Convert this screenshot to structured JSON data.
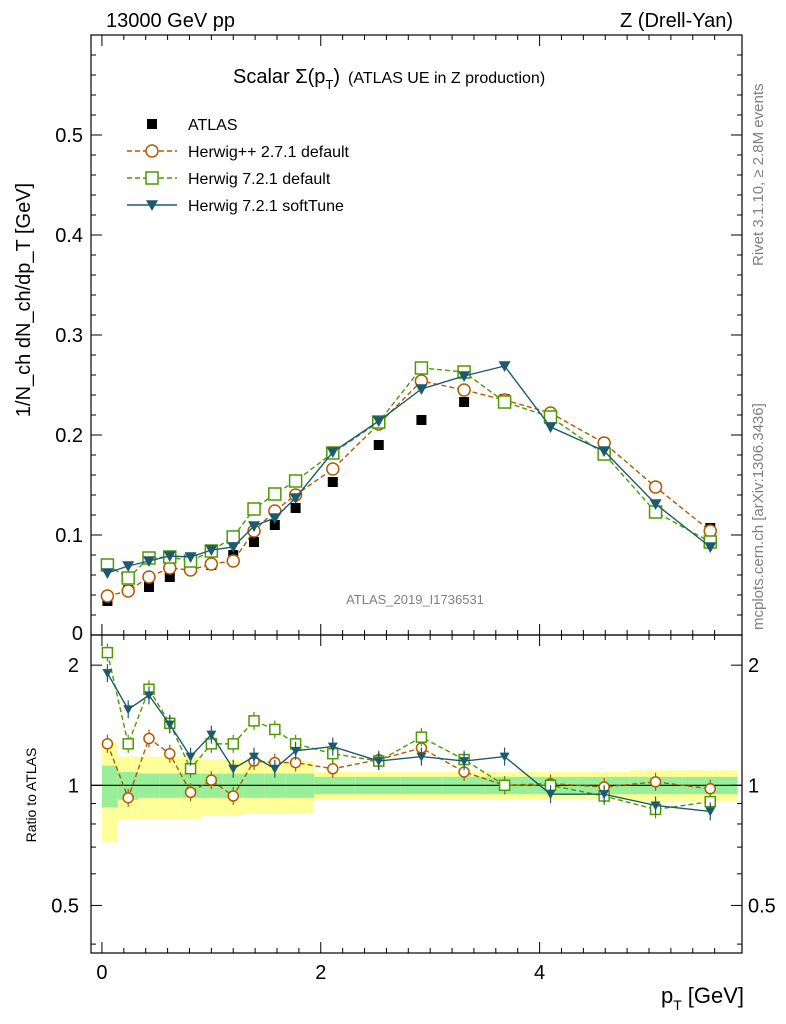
{
  "header": {
    "left": "13000 GeV pp",
    "right": "Z (Drell-Yan)"
  },
  "side": {
    "rivet": "Rivet 3.1.10, ≥ 2.8M events",
    "mcplots": "mcplots.cern.ch [arXiv:1306.3436]"
  },
  "chart_data": {
    "type": "scatter",
    "title": "Scalar Σ(p_T) (ATLAS UE in Z production)",
    "title_parts": {
      "main": "Scalar Σ(p",
      "sub": "T",
      "close": ")",
      "rest": "(ATLAS UE in Z production)"
    },
    "analysis_id": "ATLAS_2019_I1736531",
    "xlabel": "p_T [GeV]",
    "xlabel_parts": {
      "p": "p",
      "sub": "T",
      "unit": "[GeV]"
    },
    "ylabel": "1/N_ch dN_ch/dp_T [GeV]",
    "ratio_ylabel": "Ratio to ATLAS",
    "xlim": [
      -0.1,
      5.85
    ],
    "ylim": [
      0,
      0.6
    ],
    "ratio_ylim": [
      0.38,
      2.38
    ],
    "xticks": [
      0,
      2,
      4
    ],
    "xtick_labels": [
      "0",
      "2",
      "4"
    ],
    "yticks": [
      0.1,
      0.2,
      0.3,
      0.4,
      0.5
    ],
    "ytick_labels": [
      "0.1",
      "0.2",
      "0.3",
      "0.4",
      "0.5"
    ],
    "ymin_label": "0",
    "ratio_yticks": [
      0.5,
      1,
      2
    ],
    "ratio_ytick_labels": [
      "0.5",
      "1",
      "2"
    ],
    "x": [
      0.05,
      0.24,
      0.43,
      0.62,
      0.81,
      1.0,
      1.2,
      1.39,
      1.58,
      1.77,
      2.11,
      2.53,
      2.92,
      3.31,
      3.68,
      4.1,
      4.59,
      5.06,
      5.56
    ],
    "series": [
      {
        "name": "ATLAS",
        "style": "data",
        "color": "#000000",
        "values": [
          0.034,
          0.045,
          0.048,
          0.058,
          0.067,
          0.07,
          0.08,
          0.093,
          0.11,
          0.127,
          0.153,
          0.19,
          0.215,
          0.233,
          0.236,
          0.22,
          0.192,
          0.148,
          0.107
        ],
        "band_stat": [
          0.12,
          0.08,
          0.07,
          0.07,
          0.07,
          0.07,
          0.07,
          0.07,
          0.07,
          0.07,
          0.05,
          0.05,
          0.05,
          0.05,
          0.05,
          0.05,
          0.05,
          0.05,
          0.05
        ],
        "band_total": [
          0.28,
          0.18,
          0.18,
          0.18,
          0.18,
          0.16,
          0.16,
          0.15,
          0.15,
          0.15,
          0.08,
          0.08,
          0.08,
          0.08,
          0.08,
          0.08,
          0.08,
          0.09,
          0.09
        ]
      },
      {
        "name": "Herwig++ 2.7.1 default",
        "style": "dashed-circle",
        "color": "#b35900",
        "values": [
          0.039,
          0.044,
          0.058,
          0.067,
          0.065,
          0.071,
          0.074,
          0.104,
          0.124,
          0.14,
          0.166,
          0.211,
          0.254,
          0.245,
          0.235,
          0.222,
          0.192,
          0.148,
          0.104
        ],
        "ratio": [
          1.27,
          0.93,
          1.31,
          1.2,
          0.96,
          1.03,
          0.94,
          1.15,
          1.14,
          1.14,
          1.1,
          1.16,
          1.24,
          1.08,
          1.0,
          1.01,
          0.99,
          1.02,
          0.98
        ]
      },
      {
        "name": "Herwig 7.2.1 default",
        "style": "dashed-square",
        "color": "#4c9a00",
        "values": [
          0.07,
          0.057,
          0.077,
          0.078,
          0.074,
          0.084,
          0.098,
          0.126,
          0.141,
          0.154,
          0.182,
          0.213,
          0.267,
          0.263,
          0.233,
          0.218,
          0.181,
          0.123,
          0.093
        ],
        "ratio": [
          2.15,
          1.27,
          1.74,
          1.43,
          1.1,
          1.27,
          1.27,
          1.45,
          1.38,
          1.27,
          1.2,
          1.15,
          1.32,
          1.16,
          1.0,
          1.0,
          0.94,
          0.87,
          0.91
        ]
      },
      {
        "name": "Herwig 7.2.1 softTune",
        "style": "solid-triangle",
        "color": "#1e5a6e",
        "values": [
          0.062,
          0.069,
          0.074,
          0.079,
          0.078,
          0.085,
          0.088,
          0.109,
          0.117,
          0.137,
          0.183,
          0.214,
          0.246,
          0.259,
          0.269,
          0.208,
          0.184,
          0.131,
          0.088
        ],
        "ratio": [
          1.91,
          1.55,
          1.68,
          1.42,
          1.18,
          1.34,
          1.1,
          1.18,
          1.1,
          1.22,
          1.25,
          1.15,
          1.18,
          1.15,
          1.18,
          0.95,
          0.95,
          0.89,
          0.86
        ]
      }
    ],
    "legend_position": "top-left"
  }
}
